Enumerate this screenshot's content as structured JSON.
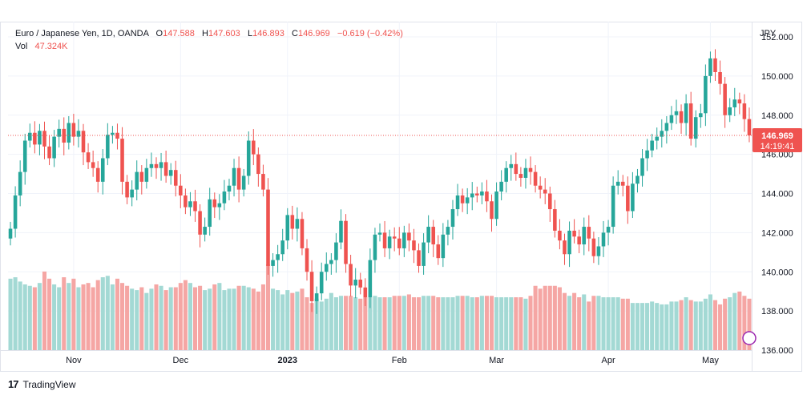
{
  "legend": {
    "symbol": "Euro / Japanese Yen, 1D, OANDA",
    "o_label": "O",
    "o_value": "147.588",
    "h_label": "H",
    "h_value": "147.603",
    "l_label": "L",
    "l_value": "146.893",
    "c_label": "C",
    "c_value": "146.969",
    "change": "−0.619 (−0.42%)",
    "vol_label": "Vol",
    "vol_value": "47.324K"
  },
  "price_badge": {
    "price": "146.969",
    "countdown": "14:19:41"
  },
  "branding": {
    "name": "TradingView"
  },
  "colors": {
    "up": "#26a69a",
    "down": "#ef5350",
    "up_vol": "#a3d9d4",
    "down_vol": "#f5a6a4",
    "grid": "#f0f3fa",
    "axis_text": "#131722"
  },
  "chart_data": {
    "type": "candlestick",
    "currency_label": "JPY",
    "y_ticks": [
      "152.000",
      "150.000",
      "148.000",
      "146.000",
      "144.000",
      "142.000",
      "140.000",
      "138.000",
      "136.000"
    ],
    "ylim": [
      136.0,
      152.0
    ],
    "x_ticks": [
      {
        "label": "Nov",
        "bar": 13
      },
      {
        "label": "Dec",
        "bar": 35
      },
      {
        "label": "2023",
        "bar": 57
      },
      {
        "label": "Feb",
        "bar": 80
      },
      {
        "label": "Mar",
        "bar": 100
      },
      {
        "label": "Apr",
        "bar": 123
      },
      {
        "label": "May",
        "bar": 144
      }
    ],
    "last_price": 146.969,
    "candles": [],
    "volume_max": 60
  }
}
